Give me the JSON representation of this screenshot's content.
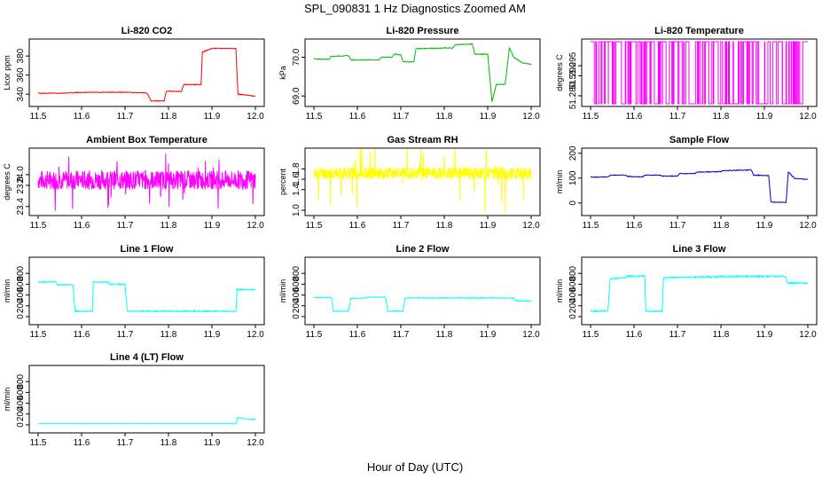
{
  "figure": {
    "title": "SPL_090831  1 Hz Diagnostics Zoomed AM",
    "xlabel": "Hour of Day (UTC)"
  },
  "chart_data": [
    {
      "type": "line",
      "title": "Li-820 CO2",
      "ylabel": "Licor ppm",
      "color": "#ff0000",
      "xlim": [
        11.5,
        12.0
      ],
      "ylim": [
        330,
        395
      ],
      "xticks": [
        "11.5",
        "11.6",
        "11.7",
        "11.8",
        "11.9",
        "12.0"
      ],
      "yticks": [
        340,
        360,
        380
      ],
      "series": [
        {
          "kind": "step",
          "noise": 0.4,
          "points": [
            [
              11.5,
              341
            ],
            [
              11.55,
              341
            ],
            [
              11.6,
              342
            ],
            [
              11.7,
              342
            ],
            [
              11.75,
              341.5
            ],
            [
              11.76,
              333
            ],
            [
              11.79,
              333
            ],
            [
              11.795,
              343
            ],
            [
              11.83,
              343
            ],
            [
              11.835,
              350
            ],
            [
              11.875,
              350
            ],
            [
              11.878,
              384
            ],
            [
              11.9,
              388
            ],
            [
              11.955,
              388
            ],
            [
              11.96,
              340
            ],
            [
              12.0,
              338
            ]
          ]
        }
      ]
    },
    {
      "type": "line",
      "title": "Li-820 Pressure",
      "ylabel": "kPa",
      "color": "#00bb00",
      "xlim": [
        11.5,
        12.0
      ],
      "ylim": [
        68.8,
        70.4
      ],
      "xticks": [
        "11.5",
        "11.6",
        "11.7",
        "11.8",
        "11.9",
        "12.0"
      ],
      "yticks": [
        "69.0",
        "70.0"
      ],
      "series": [
        {
          "kind": "step",
          "noise": 0.01,
          "points": [
            [
              11.5,
              69.96
            ],
            [
              11.535,
              69.94
            ],
            [
              11.54,
              70.02
            ],
            [
              11.58,
              70.04
            ],
            [
              11.585,
              69.93
            ],
            [
              11.65,
              69.93
            ],
            [
              11.655,
              70.0
            ],
            [
              11.68,
              70.0
            ],
            [
              11.685,
              70.08
            ],
            [
              11.7,
              70.06
            ],
            [
              11.705,
              69.88
            ],
            [
              11.73,
              69.88
            ],
            [
              11.735,
              70.22
            ],
            [
              11.82,
              70.24
            ],
            [
              11.825,
              70.32
            ],
            [
              11.865,
              70.34
            ],
            [
              11.87,
              70.08
            ],
            [
              11.9,
              70.08
            ],
            [
              11.91,
              68.85
            ],
            [
              11.92,
              69.3
            ],
            [
              11.94,
              69.3
            ],
            [
              11.95,
              70.25
            ],
            [
              11.96,
              70.0
            ],
            [
              11.98,
              69.85
            ],
            [
              12.0,
              69.82
            ]
          ]
        }
      ]
    },
    {
      "type": "line",
      "title": "Li-820 Temperature",
      "ylabel": "degrees C",
      "color": "#ff00ff",
      "xlim": [
        11.5,
        12.0
      ],
      "ylim": [
        51.276,
        51.307
      ],
      "xticks": [
        "11.5",
        "11.6",
        "11.7",
        "11.8",
        "11.9",
        "12.0"
      ],
      "yticks": [
        "51.280",
        "51.290",
        "51.295"
      ],
      "series": [
        {
          "kind": "binary",
          "low": 51.276,
          "high": 51.307,
          "switches": 140,
          "seed": 3
        }
      ]
    },
    {
      "type": "line",
      "title": "Ambient Box Temperature",
      "ylabel": "degrees C",
      "color": "#ff00ff",
      "xlim": [
        11.5,
        12.0
      ],
      "ylim": [
        23.28,
        24.45
      ],
      "xticks": [
        "11.5",
        "11.6",
        "11.7",
        "11.8",
        "11.9",
        "12.0"
      ],
      "yticks": [
        "23.4",
        "23.8",
        "24.0"
      ],
      "series": [
        {
          "kind": "noise",
          "base": 23.9,
          "amp": 0.18,
          "spike": 0.55,
          "n": 700,
          "seed": 7
        }
      ]
    },
    {
      "type": "line",
      "title": "Gas Stream RH",
      "ylabel": "percent",
      "color": "#ffff00",
      "xlim": [
        11.5,
        12.0
      ],
      "ylim": [
        0.95,
        2.15
      ],
      "xticks": [
        "11.5",
        "11.6",
        "11.7",
        "11.8",
        "11.9",
        "12.0"
      ],
      "yticks": [
        "1.0",
        "1.4",
        "1.6",
        "1.8"
      ],
      "series": [
        {
          "kind": "noise",
          "base": 1.72,
          "amp": 0.12,
          "spike": 0.7,
          "n": 700,
          "seed": 11
        }
      ]
    },
    {
      "type": "line",
      "title": "Sample Flow",
      "ylabel": "ml/min",
      "color": "#0000cc",
      "xlim": [
        11.5,
        12.0
      ],
      "ylim": [
        -40,
        210
      ],
      "xticks": [
        "11.5",
        "11.6",
        "11.7",
        "11.8",
        "11.9",
        "12.0"
      ],
      "yticks": [
        0,
        100,
        200
      ],
      "series": [
        {
          "kind": "step",
          "noise": 1.5,
          "points": [
            [
              11.5,
              104
            ],
            [
              11.54,
              104
            ],
            [
              11.545,
              112
            ],
            [
              11.58,
              112
            ],
            [
              11.585,
              107
            ],
            [
              11.62,
              105
            ],
            [
              11.625,
              112
            ],
            [
              11.66,
              112
            ],
            [
              11.665,
              108
            ],
            [
              11.7,
              108
            ],
            [
              11.705,
              118
            ],
            [
              11.74,
              118
            ],
            [
              11.745,
              124
            ],
            [
              11.8,
              126
            ],
            [
              11.805,
              130
            ],
            [
              11.87,
              133
            ],
            [
              11.875,
              112
            ],
            [
              11.91,
              110
            ],
            [
              11.915,
              3
            ],
            [
              11.95,
              3
            ],
            [
              11.955,
              125
            ],
            [
              11.97,
              98
            ],
            [
              12.0,
              95
            ]
          ]
        }
      ]
    },
    {
      "type": "line",
      "title": "Line 1 Flow",
      "ylabel": "ml/min",
      "color": "#00ffff",
      "xlim": [
        11.5,
        12.0
      ],
      "ylim": [
        -100,
        1050
      ],
      "xticks": [
        "11.5",
        "11.6",
        "11.7",
        "11.8",
        "11.9",
        "12.0"
      ],
      "yticks": [
        0,
        200,
        400,
        600,
        800
      ],
      "series": [
        {
          "kind": "step",
          "noise": 12,
          "points": [
            [
              11.5,
              640
            ],
            [
              11.54,
              640
            ],
            [
              11.545,
              590
            ],
            [
              11.58,
              590
            ],
            [
              11.585,
              100
            ],
            [
              11.625,
              100
            ],
            [
              11.627,
              640
            ],
            [
              11.66,
              640
            ],
            [
              11.665,
              600
            ],
            [
              11.7,
              600
            ],
            [
              11.705,
              100
            ],
            [
              11.955,
              100
            ],
            [
              11.958,
              500
            ],
            [
              12.0,
              500
            ]
          ]
        }
      ]
    },
    {
      "type": "line",
      "title": "Line 2 Flow",
      "ylabel": "ml/min",
      "color": "#00ffff",
      "xlim": [
        11.5,
        12.0
      ],
      "ylim": [
        -100,
        1050
      ],
      "xticks": [
        "11.5",
        "11.6",
        "11.7",
        "11.8",
        "11.9",
        "12.0"
      ],
      "yticks": [
        0,
        200,
        400,
        600,
        800
      ],
      "series": [
        {
          "kind": "step",
          "noise": 8,
          "points": [
            [
              11.5,
              350
            ],
            [
              11.54,
              350
            ],
            [
              11.545,
              100
            ],
            [
              11.58,
              100
            ],
            [
              11.585,
              340
            ],
            [
              11.62,
              345
            ],
            [
              11.625,
              360
            ],
            [
              11.665,
              360
            ],
            [
              11.67,
              100
            ],
            [
              11.705,
              100
            ],
            [
              11.71,
              345
            ],
            [
              11.96,
              345
            ],
            [
              11.965,
              290
            ],
            [
              12.0,
              285
            ]
          ]
        }
      ]
    },
    {
      "type": "line",
      "title": "Line 3 Flow",
      "ylabel": "ml/min",
      "color": "#00ffff",
      "xlim": [
        11.5,
        12.0
      ],
      "ylim": [
        -100,
        1050
      ],
      "xticks": [
        "11.5",
        "11.6",
        "11.7",
        "11.8",
        "11.9",
        "12.0"
      ],
      "yticks": [
        0,
        200,
        400,
        600,
        800
      ],
      "series": [
        {
          "kind": "step",
          "noise": 15,
          "points": [
            [
              11.5,
              100
            ],
            [
              11.54,
              100
            ],
            [
              11.545,
              700
            ],
            [
              11.58,
              720
            ],
            [
              11.585,
              750
            ],
            [
              11.625,
              750
            ],
            [
              11.627,
              100
            ],
            [
              11.665,
              100
            ],
            [
              11.668,
              720
            ],
            [
              11.8,
              740
            ],
            [
              11.85,
              745
            ],
            [
              11.95,
              745
            ],
            [
              11.953,
              620
            ],
            [
              12.0,
              620
            ]
          ]
        }
      ]
    },
    {
      "type": "line",
      "title": "Line 4 (LT) Flow",
      "ylabel": "ml/min",
      "color": "#00ffff",
      "xlim": [
        11.5,
        12.0
      ],
      "ylim": [
        -100,
        1050
      ],
      "xticks": [
        "11.5",
        "11.6",
        "11.7",
        "11.8",
        "11.9",
        "12.0"
      ],
      "yticks": [
        0,
        200,
        400,
        600,
        800
      ],
      "series": [
        {
          "kind": "step",
          "noise": 2,
          "points": [
            [
              11.5,
              20
            ],
            [
              11.955,
              20
            ],
            [
              11.96,
              140
            ],
            [
              11.975,
              110
            ],
            [
              12.0,
              105
            ]
          ]
        }
      ]
    }
  ]
}
